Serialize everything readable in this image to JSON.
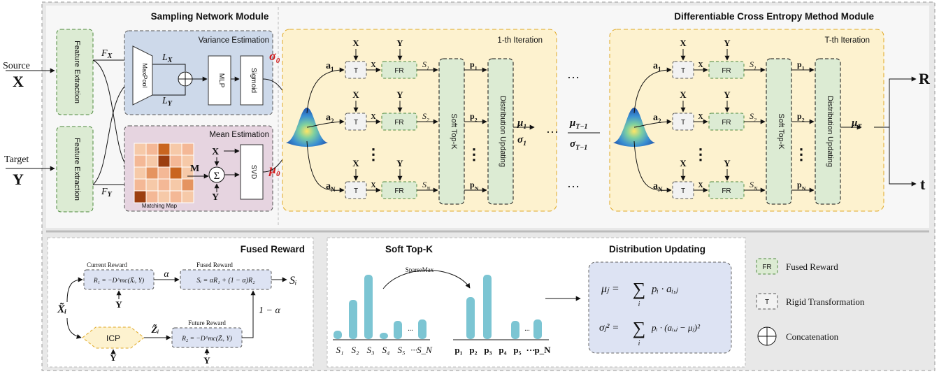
{
  "top": {
    "sampling_title": "Sampling Network Module",
    "dcem_title": "Differentiable Cross Entropy Method Module",
    "source_label": "Source",
    "source_symbol": "X",
    "target_label": "Target",
    "target_symbol": "Y",
    "feature_extraction": "Feature Extraction",
    "fx": "F",
    "fx_sub": "X",
    "fy": "F",
    "fy_sub": "Y",
    "variance_title": "Variance Estimation",
    "maxpool": "MaxPool",
    "lx": "L",
    "lx_sub": "X",
    "ly": "L",
    "ly_sub": "Y",
    "mlp": "MLP",
    "sigmoid": "Sigmoid",
    "sigma0": "σ",
    "sigma0_sub": "0",
    "mean_title": "Mean Estimation",
    "matching_map": "Matching Map",
    "m_symbol": "M",
    "sigma_sum": "Σ",
    "x_symbol": "X",
    "y_symbol": "Y",
    "svd": "SVD",
    "mu0": "μ",
    "mu0_sub": "0",
    "iter1_title": "1-th Iteration",
    "iterT_title": "T-th Iteration",
    "t_box": "T",
    "fr_box": "FR",
    "soft_topk": "Soft Top-K",
    "dist_updating": "Distribution Updating",
    "a1": "a",
    "a1_sub": "1",
    "a2_sub": "2",
    "aN_sub": "N",
    "s1": "S",
    "s1_sub": "1",
    "s2_sub": "2",
    "sN_sub": "N",
    "p": "p",
    "vdots": "⋮",
    "mu1": "μ",
    "mu1_sub": "1",
    "sigma1": "σ",
    "sigma1_sub": "1",
    "dots": "…",
    "muT1": "μ",
    "muT1_sub": "T−1",
    "sigmaT1": "σ",
    "sigmaT1_sub": "T−1",
    "muT": "μ",
    "muT_sub": "T",
    "R_out": "R",
    "t_out": "t"
  },
  "bottom": {
    "fused_title": "Fused Reward",
    "current_reward": "Current Reward",
    "current_formula": "R₁ = −D^mc(X̃ᵢ, Y)",
    "alpha": "α",
    "fused_reward_lbl": "Fused Reward",
    "fused_formula": "Sᵢ = αR₁ + (1 − α)R₂",
    "si": "Sᵢ",
    "xi": "X̃ᵢ",
    "icp": "ICP",
    "zi": "Z̃ᵢ",
    "future_reward": "Future Reward",
    "future_formula": "R₂ = −D^mc(Z̃ᵢ, Y)",
    "one_minus_alpha": "1 − α",
    "y": "Y",
    "softtopk_title": "Soft Top-K",
    "sparsemax": "SparseMax",
    "s_labels": [
      "S₁",
      "S₂",
      "S₃",
      "S₄",
      "S₅",
      "···",
      "S_N"
    ],
    "p_labels": [
      "p₁",
      "p₂",
      "p₃",
      "p₄",
      "p₅",
      "···",
      "p_N"
    ],
    "bar_dots": "...",
    "dist_title": "Distribution Updating",
    "mu_eq_lhs": "μⱼ =",
    "mu_eq_rhs": "pᵢ · aᵢ,ⱼ",
    "sigma_eq_lhs": "σⱼ² =",
    "sigma_eq_rhs": "pᵢ · (aᵢ,ⱼ − μⱼ)²",
    "sum": "∑",
    "sum_idx": "i",
    "legend_fr_box": "FR",
    "legend_fr": "Fused Reward",
    "legend_t_box": "T",
    "legend_t": "Rigid Transformation",
    "legend_concat": "Concatenation"
  },
  "colors": {
    "green_fill": "#dcebd3",
    "green_stroke": "#4e8a3e",
    "blue_fill": "#cdd9ea",
    "pink_fill": "#e6d4e0",
    "yellow_fill": "#fdf2cf",
    "yellow_stroke": "#e0a824",
    "teal_bar": "#7cc5d3",
    "red": "#d11a1a",
    "panel": "#f5f5f5",
    "dist_box": "#dde3f3"
  }
}
